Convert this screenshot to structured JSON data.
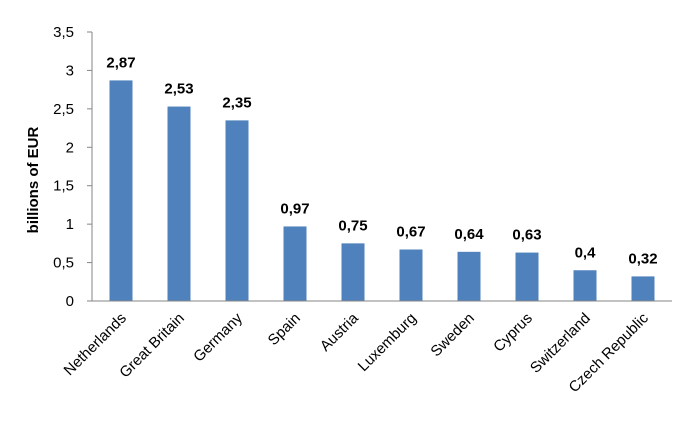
{
  "chart_data": {
    "type": "bar",
    "title": "",
    "xlabel": "",
    "ylabel": "billions of EUR",
    "ylim": [
      0,
      3.5
    ],
    "yticks": [
      "0",
      "0,5",
      "1",
      "1,5",
      "2",
      "2,5",
      "3",
      "3,5"
    ],
    "ytick_values": [
      0,
      0.5,
      1,
      1.5,
      2,
      2.5,
      3,
      3.5
    ],
    "categories": [
      "Netherlands",
      "Great Britain",
      "Germany",
      "Spain",
      "Austria",
      "Luxemburg",
      "Sweden",
      "Cyprus",
      "Switzerland",
      "Czech Republic"
    ],
    "values": [
      2.87,
      2.53,
      2.35,
      0.97,
      0.75,
      0.67,
      0.64,
      0.63,
      0.4,
      0.32
    ],
    "value_labels": [
      "2,87",
      "2,53",
      "2,35",
      "0,97",
      "0,75",
      "0,67",
      "0,64",
      "0,63",
      "0,4",
      "0,32"
    ],
    "grid": false,
    "legend": "none",
    "colors": {
      "bar": "#4f81bd",
      "axis": "#868686"
    }
  }
}
